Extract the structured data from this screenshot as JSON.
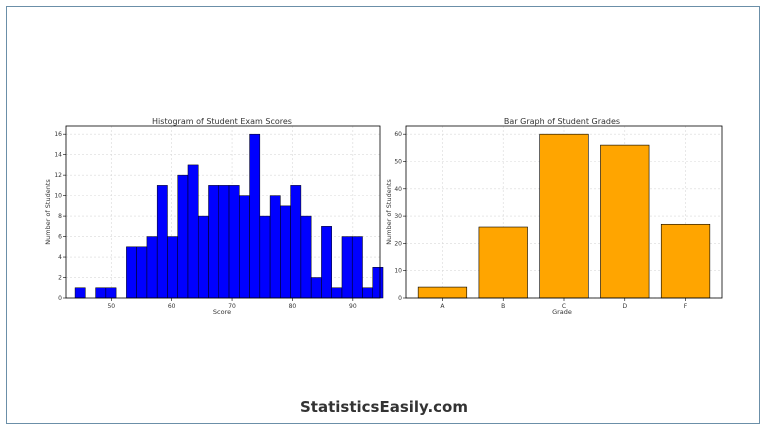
{
  "footer": {
    "brand": "StatisticsEasily.com"
  },
  "colors": {
    "histogram_bar": "#0000ff",
    "grade_bar": "#ffa500",
    "edge": "#000000",
    "grid": "#d9d9d9",
    "frame": "#6b8fa8"
  },
  "chart_data": [
    {
      "type": "bar",
      "title": "Histogram of Student Exam Scores",
      "xlabel": "Score",
      "ylabel": "Number of Students",
      "xlim": [
        42.5,
        94.5
      ],
      "ylim": [
        0,
        16.8
      ],
      "xticks": [
        50,
        60,
        70,
        80,
        90
      ],
      "yticks": [
        0,
        2,
        4,
        6,
        8,
        10,
        12,
        14,
        16
      ],
      "grid": true,
      "bins": [
        {
          "x0": 44.0,
          "x1": 45.7,
          "count": 1
        },
        {
          "x0": 45.7,
          "x1": 47.4,
          "count": 0
        },
        {
          "x0": 47.4,
          "x1": 49.1,
          "count": 1
        },
        {
          "x0": 49.1,
          "x1": 50.8,
          "count": 1
        },
        {
          "x0": 50.8,
          "x1": 52.5,
          "count": 0
        },
        {
          "x0": 52.5,
          "x1": 54.2,
          "count": 5
        },
        {
          "x0": 54.2,
          "x1": 55.9,
          "count": 5
        },
        {
          "x0": 55.9,
          "x1": 57.6,
          "count": 6
        },
        {
          "x0": 57.6,
          "x1": 59.3,
          "count": 11
        },
        {
          "x0": 59.3,
          "x1": 61.0,
          "count": 6
        },
        {
          "x0": 61.0,
          "x1": 62.7,
          "count": 12
        },
        {
          "x0": 62.7,
          "x1": 64.4,
          "count": 13
        },
        {
          "x0": 64.4,
          "x1": 66.1,
          "count": 8
        },
        {
          "x0": 66.1,
          "x1": 67.8,
          "count": 11
        },
        {
          "x0": 67.8,
          "x1": 69.5,
          "count": 11
        },
        {
          "x0": 69.5,
          "x1": 71.2,
          "count": 11
        },
        {
          "x0": 71.2,
          "x1": 72.9,
          "count": 10
        },
        {
          "x0": 72.9,
          "x1": 74.6,
          "count": 16
        },
        {
          "x0": 74.6,
          "x1": 76.3,
          "count": 8
        },
        {
          "x0": 76.3,
          "x1": 78.0,
          "count": 10
        },
        {
          "x0": 78.0,
          "x1": 79.7,
          "count": 9
        },
        {
          "x0": 79.7,
          "x1": 81.4,
          "count": 11
        },
        {
          "x0": 81.4,
          "x1": 83.1,
          "count": 8
        },
        {
          "x0": 83.1,
          "x1": 84.8,
          "count": 2
        },
        {
          "x0": 84.8,
          "x1": 86.5,
          "count": 7
        },
        {
          "x0": 86.5,
          "x1": 88.2,
          "count": 1
        },
        {
          "x0": 88.2,
          "x1": 89.9,
          "count": 6
        },
        {
          "x0": 89.9,
          "x1": 91.6,
          "count": 6
        },
        {
          "x0": 91.6,
          "x1": 93.3,
          "count": 1
        },
        {
          "x0": 93.3,
          "x1": 95.0,
          "count": 3
        }
      ]
    },
    {
      "type": "bar",
      "title": "Bar Graph of Student Grades",
      "xlabel": "Grade",
      "ylabel": "Number of Students",
      "categories": [
        "A",
        "B",
        "C",
        "D",
        "F"
      ],
      "values": [
        4,
        26,
        60,
        56,
        27
      ],
      "ylim": [
        0,
        63
      ],
      "yticks": [
        0,
        10,
        20,
        30,
        40,
        50,
        60
      ],
      "grid": true
    }
  ]
}
